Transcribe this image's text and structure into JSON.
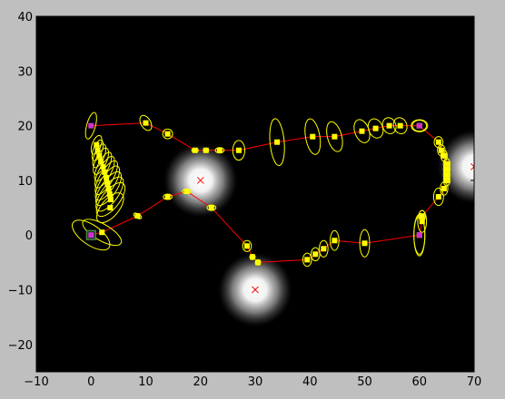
{
  "chart_data": {
    "type": "scatter",
    "xlim": [
      -10,
      70
    ],
    "ylim": [
      -25,
      40
    ],
    "x_ticks": [
      -10,
      0,
      10,
      20,
      30,
      40,
      50,
      60,
      70
    ],
    "y_ticks": [
      -20,
      -10,
      0,
      10,
      20,
      30,
      40
    ],
    "x_tick_labels": [
      "−10",
      "0",
      "10",
      "20",
      "30",
      "40",
      "50",
      "60",
      "70"
    ],
    "y_tick_labels": [
      "−20",
      "−10",
      "0",
      "10",
      "20",
      "30",
      "40"
    ],
    "grid": false,
    "colors": {
      "background": "#000000",
      "figure": "#bfbfbf",
      "path": "#ff0000",
      "estimate": "#ffff00",
      "ellipse": "#ffff00",
      "landmark": "#ff0000",
      "keypose": "#cc33cc"
    },
    "landmarks": [
      {
        "x": 20,
        "y": 10
      },
      {
        "x": 30,
        "y": -10
      },
      {
        "x": 70,
        "y": 12.5
      }
    ],
    "path": [
      [
        0,
        0
      ],
      [
        2,
        0.5
      ],
      [
        8.5,
        3.5
      ],
      [
        14,
        7
      ],
      [
        17.5,
        8
      ],
      [
        22,
        5
      ],
      [
        28.5,
        -2
      ],
      [
        29.5,
        -4
      ],
      [
        30.5,
        -5
      ],
      [
        39.5,
        -4.5
      ],
      [
        41,
        -3.5
      ],
      [
        42.5,
        -2.5
      ],
      [
        44.5,
        -1
      ],
      [
        50,
        -1.5
      ],
      [
        60,
        0
      ],
      [
        60.5,
        2.5
      ],
      [
        60.5,
        3.5
      ],
      [
        63.5,
        7
      ],
      [
        64.5,
        8.5
      ],
      [
        65,
        10
      ],
      [
        65,
        11
      ],
      [
        65,
        12
      ],
      [
        65,
        13
      ],
      [
        64.5,
        14.5
      ],
      [
        64,
        15.5
      ],
      [
        63.5,
        17
      ],
      [
        60,
        20
      ],
      [
        56.5,
        20
      ],
      [
        54.5,
        20
      ],
      [
        52,
        19.5
      ],
      [
        49.5,
        19
      ],
      [
        44.5,
        18
      ],
      [
        40.5,
        18
      ],
      [
        34,
        17
      ],
      [
        27,
        15.5
      ],
      [
        23.5,
        15.5
      ],
      [
        21,
        15.5
      ],
      [
        19,
        15.5
      ],
      [
        14,
        18.5
      ],
      [
        10,
        20.5
      ],
      [
        0,
        20
      ]
    ],
    "estimates": [
      {
        "x": 2,
        "y": 0.5,
        "rx": 4,
        "ry": 1.5,
        "angle": -30
      },
      {
        "x": 8.5,
        "y": 3.5,
        "rx": 0.8,
        "ry": 0.4,
        "angle": -30
      },
      {
        "x": 14,
        "y": 7,
        "rx": 0.8,
        "ry": 0.5,
        "angle": 0
      },
      {
        "x": 17.5,
        "y": 8,
        "rx": 0.8,
        "ry": 0.4,
        "angle": 0
      },
      {
        "x": 22,
        "y": 5,
        "rx": 0.8,
        "ry": 0.5,
        "angle": 0
      },
      {
        "x": 28.5,
        "y": -2,
        "rx": 0.8,
        "ry": 1,
        "angle": 0
      },
      {
        "x": 29.5,
        "y": -4,
        "rx": 0.5,
        "ry": 0.5,
        "angle": 0
      },
      {
        "x": 30.5,
        "y": -5,
        "rx": 0.5,
        "ry": 0.5,
        "angle": 0
      },
      {
        "x": 39.5,
        "y": -4.5,
        "rx": 0.8,
        "ry": 1.2,
        "angle": 0
      },
      {
        "x": 41,
        "y": -3.5,
        "rx": 0.8,
        "ry": 1.2,
        "angle": 0
      },
      {
        "x": 42.5,
        "y": -2.5,
        "rx": 0.8,
        "ry": 1.5,
        "angle": 0
      },
      {
        "x": 44.5,
        "y": -1,
        "rx": 0.8,
        "ry": 1.8,
        "angle": 0
      },
      {
        "x": 50,
        "y": -1.5,
        "rx": 0.9,
        "ry": 2.5,
        "angle": 0
      },
      {
        "x": 60,
        "y": 0,
        "rx": 1,
        "ry": 3.5,
        "angle": 0
      },
      {
        "x": 60.5,
        "y": 2.5,
        "rx": 0.8,
        "ry": 2,
        "angle": 0
      },
      {
        "x": 60.5,
        "y": 3.5,
        "rx": 0.6,
        "ry": 1,
        "angle": 0
      },
      {
        "x": 63.5,
        "y": 7,
        "rx": 0.9,
        "ry": 1.6,
        "angle": 0
      },
      {
        "x": 64.5,
        "y": 8.5,
        "rx": 0.7,
        "ry": 1.2,
        "angle": 0
      },
      {
        "x": 65,
        "y": 10,
        "rx": 0.6,
        "ry": 1,
        "angle": 0
      },
      {
        "x": 65,
        "y": 11,
        "rx": 0.6,
        "ry": 1,
        "angle": 0
      },
      {
        "x": 65,
        "y": 12,
        "rx": 0.6,
        "ry": 1,
        "angle": 0
      },
      {
        "x": 65,
        "y": 13,
        "rx": 0.6,
        "ry": 1,
        "angle": 0
      },
      {
        "x": 64.5,
        "y": 14.5,
        "rx": 0.6,
        "ry": 1,
        "angle": 0
      },
      {
        "x": 64,
        "y": 15.5,
        "rx": 0.7,
        "ry": 1,
        "angle": 0
      },
      {
        "x": 63.5,
        "y": 17,
        "rx": 0.8,
        "ry": 1,
        "angle": 0
      },
      {
        "x": 60,
        "y": 20,
        "rx": 1.3,
        "ry": 1,
        "angle": 0
      },
      {
        "x": 56.5,
        "y": 20,
        "rx": 1.2,
        "ry": 1.5,
        "angle": 20
      },
      {
        "x": 54.5,
        "y": 20,
        "rx": 1.2,
        "ry": 1.5,
        "angle": 20
      },
      {
        "x": 52,
        "y": 19.5,
        "rx": 1.3,
        "ry": 1.8,
        "angle": 20
      },
      {
        "x": 49.5,
        "y": 19,
        "rx": 1.3,
        "ry": 2.2,
        "angle": 20
      },
      {
        "x": 44.5,
        "y": 18,
        "rx": 1.3,
        "ry": 2.8,
        "angle": 15
      },
      {
        "x": 40.5,
        "y": 18,
        "rx": 1.3,
        "ry": 3.3,
        "angle": 10
      },
      {
        "x": 34,
        "y": 17,
        "rx": 1.3,
        "ry": 4.3,
        "angle": 5
      },
      {
        "x": 27,
        "y": 15.5,
        "rx": 1.1,
        "ry": 1.8,
        "angle": 0
      },
      {
        "x": 23.5,
        "y": 15.5,
        "rx": 0.8,
        "ry": 0.5,
        "angle": 0
      },
      {
        "x": 21,
        "y": 15.5,
        "rx": 0.5,
        "ry": 0.4,
        "angle": 0
      },
      {
        "x": 19,
        "y": 15.5,
        "rx": 0.6,
        "ry": 0.4,
        "angle": 0
      },
      {
        "x": 14,
        "y": 18.5,
        "rx": 0.9,
        "ry": 0.9,
        "angle": 30
      },
      {
        "x": 10,
        "y": 20.5,
        "rx": 0.9,
        "ry": 1.5,
        "angle": 30
      },
      {
        "x": 1,
        "y": 16.5,
        "rx": 0.8,
        "ry": 1.8,
        "angle": -20
      },
      {
        "x": 1.2,
        "y": 15.5,
        "rx": 0.8,
        "ry": 2,
        "angle": -20
      },
      {
        "x": 1.5,
        "y": 14.5,
        "rx": 0.9,
        "ry": 2.3,
        "angle": -22
      },
      {
        "x": 1.8,
        "y": 13.5,
        "rx": 1,
        "ry": 2.6,
        "angle": -24
      },
      {
        "x": 2.2,
        "y": 12.5,
        "rx": 1,
        "ry": 2.9,
        "angle": -26
      },
      {
        "x": 2.5,
        "y": 11.5,
        "rx": 1.1,
        "ry": 3.2,
        "angle": -28
      },
      {
        "x": 2.8,
        "y": 10.5,
        "rx": 1.2,
        "ry": 3.5,
        "angle": -30
      },
      {
        "x": 3,
        "y": 9.5,
        "rx": 1.3,
        "ry": 3.6,
        "angle": -32
      },
      {
        "x": 3.2,
        "y": 8.5,
        "rx": 1.4,
        "ry": 3.6,
        "angle": -34
      },
      {
        "x": 3.4,
        "y": 7.5,
        "rx": 1.5,
        "ry": 3.7,
        "angle": -36
      },
      {
        "x": 3.6,
        "y": 6.5,
        "rx": 1.6,
        "ry": 3.7,
        "angle": -38
      },
      {
        "x": 3.5,
        "y": 5,
        "rx": 1.6,
        "ry": 3.3,
        "angle": -40
      }
    ],
    "keyposes": [
      {
        "x": 0,
        "y": 0,
        "rx": 4,
        "ry": 1.8,
        "angle": -35
      },
      {
        "x": 0,
        "y": 20,
        "rx": 0.8,
        "ry": 2.5,
        "angle": -15
      },
      {
        "x": 60,
        "y": 20,
        "rx": 1.5,
        "ry": 1.1,
        "angle": 0
      },
      {
        "x": 60,
        "y": 0,
        "rx": 1,
        "ry": 3.8,
        "angle": 0
      }
    ]
  }
}
